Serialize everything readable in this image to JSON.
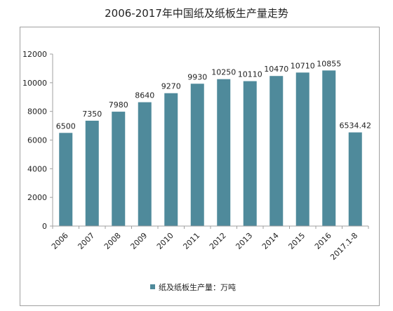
{
  "chart_data": {
    "type": "bar",
    "title": "2006-2017年中国纸及纸板生产量走势",
    "categories": [
      "2006",
      "2007",
      "2008",
      "2009",
      "2010",
      "2011",
      "2012",
      "2013",
      "2014",
      "2015",
      "2016",
      "2017.1-8"
    ],
    "series": [
      {
        "name": "纸及纸板生产量：万吨",
        "values": [
          6500,
          7350,
          7980,
          8640,
          9270,
          9930,
          10250,
          10110,
          10470,
          10710,
          10855,
          6534.42
        ],
        "labels": [
          "6500",
          "7350",
          "7980",
          "8640",
          "9270",
          "9930",
          "10250",
          "10110",
          "10470",
          "10710",
          "10855",
          "6534.42"
        ]
      }
    ],
    "ylim": [
      0,
      12000
    ],
    "yticks": [
      "0",
      "2000",
      "4000",
      "6000",
      "8000",
      "10000",
      "12000"
    ],
    "grid": false,
    "legend_position": "bottom",
    "bar_color": "#4f8a9b"
  }
}
